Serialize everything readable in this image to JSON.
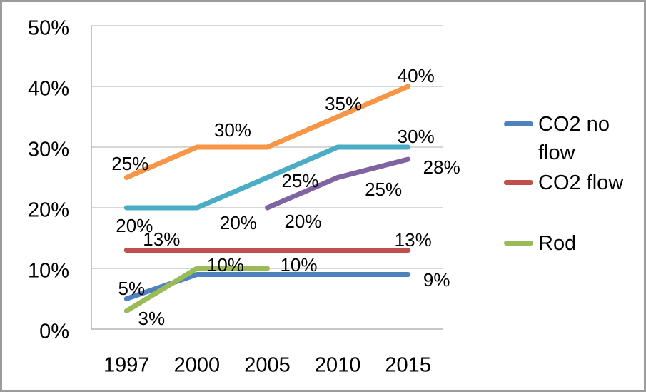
{
  "chart_data": {
    "type": "line",
    "title": "",
    "categories": [
      "1997",
      "2000",
      "2005",
      "2010",
      "2015"
    ],
    "y_axis": {
      "min": 0,
      "max": 50,
      "step": 10,
      "tick_labels": [
        "0%",
        "10%",
        "20%",
        "30%",
        "40%",
        "50%"
      ]
    },
    "grid": true,
    "legend_position": "right",
    "series": [
      {
        "name": "CO2 no flow",
        "slug": "co2-no-flow",
        "color": "#4F81BD",
        "values": [
          5,
          9,
          9,
          9,
          9
        ],
        "point_labels": [
          {
            "i": 0,
            "text": "5%",
            "dx": 7,
            "dy": -15
          },
          {
            "i": 4,
            "text": "9%",
            "dx": 40,
            "dy": 7
          }
        ]
      },
      {
        "name": "CO2 flow",
        "slug": "co2-flow",
        "color": "#C0504D",
        "values": [
          13,
          13,
          13,
          13,
          13
        ],
        "point_labels": [
          {
            "i": 0,
            "text": "13%",
            "dx": 49,
            "dy": -16
          },
          {
            "i": 4,
            "text": "13%",
            "dx": 7,
            "dy": -15
          }
        ]
      },
      {
        "name": "Rod",
        "slug": "rod",
        "color": "#9BBB59",
        "values": [
          3,
          10,
          10,
          null,
          null
        ],
        "point_labels": [
          {
            "i": 0,
            "text": "3%",
            "dx": 35,
            "dy": 10
          },
          {
            "i": 1,
            "text": "10%",
            "dx": 40,
            "dy": -5
          },
          {
            "i": 2,
            "text": "10%",
            "dx": 44,
            "dy": -5
          }
        ]
      },
      {
        "name": "",
        "slug": "series-4-purple",
        "color": "#8064A2",
        "values": [
          null,
          null,
          20,
          25,
          28
        ],
        "point_labels": [
          {
            "i": 2,
            "text": "20%",
            "dx": 50,
            "dy": 19
          },
          {
            "i": 3,
            "text": "25%",
            "dx": 64,
            "dy": 16
          },
          {
            "i": 4,
            "text": "28%",
            "dx": 47,
            "dy": 11
          }
        ]
      },
      {
        "name": "",
        "slug": "series-5-teal",
        "color": "#4BACC6",
        "values": [
          20,
          20,
          25,
          30,
          30
        ],
        "point_labels": [
          {
            "i": 0,
            "text": "20%",
            "dx": 11,
            "dy": 25
          },
          {
            "i": 1,
            "text": "20%",
            "dx": 58,
            "dy": 21
          },
          {
            "i": 2,
            "text": "25%",
            "dx": 46,
            "dy": 4
          },
          {
            "i": 4,
            "text": "30%",
            "dx": 11,
            "dy": -15
          }
        ]
      },
      {
        "name": "",
        "slug": "series-6-orange",
        "color": "#F79646",
        "values": [
          25,
          30,
          30,
          35,
          40
        ],
        "point_labels": [
          {
            "i": 0,
            "text": "25%",
            "dx": 5,
            "dy": -20
          },
          {
            "i": 1,
            "text": "30%",
            "dx": 50,
            "dy": -24
          },
          {
            "i": 3,
            "text": "35%",
            "dx": 8,
            "dy": -19
          },
          {
            "i": 4,
            "text": "40%",
            "dx": 11,
            "dy": -15
          }
        ]
      }
    ],
    "legend": {
      "entries": [
        {
          "label": "CO2 no flow",
          "color": "#4F81BD"
        },
        {
          "label": "CO2 flow",
          "color": "#C0504D"
        },
        {
          "label": "Rod",
          "color": "#9BBB59"
        }
      ]
    }
  },
  "colors": {
    "background": "#FFFFFF",
    "frame_border": "#9B9B9B",
    "gridline": "#BFBFBF",
    "axis_line": "#A6A6A6",
    "text": "#000000"
  }
}
